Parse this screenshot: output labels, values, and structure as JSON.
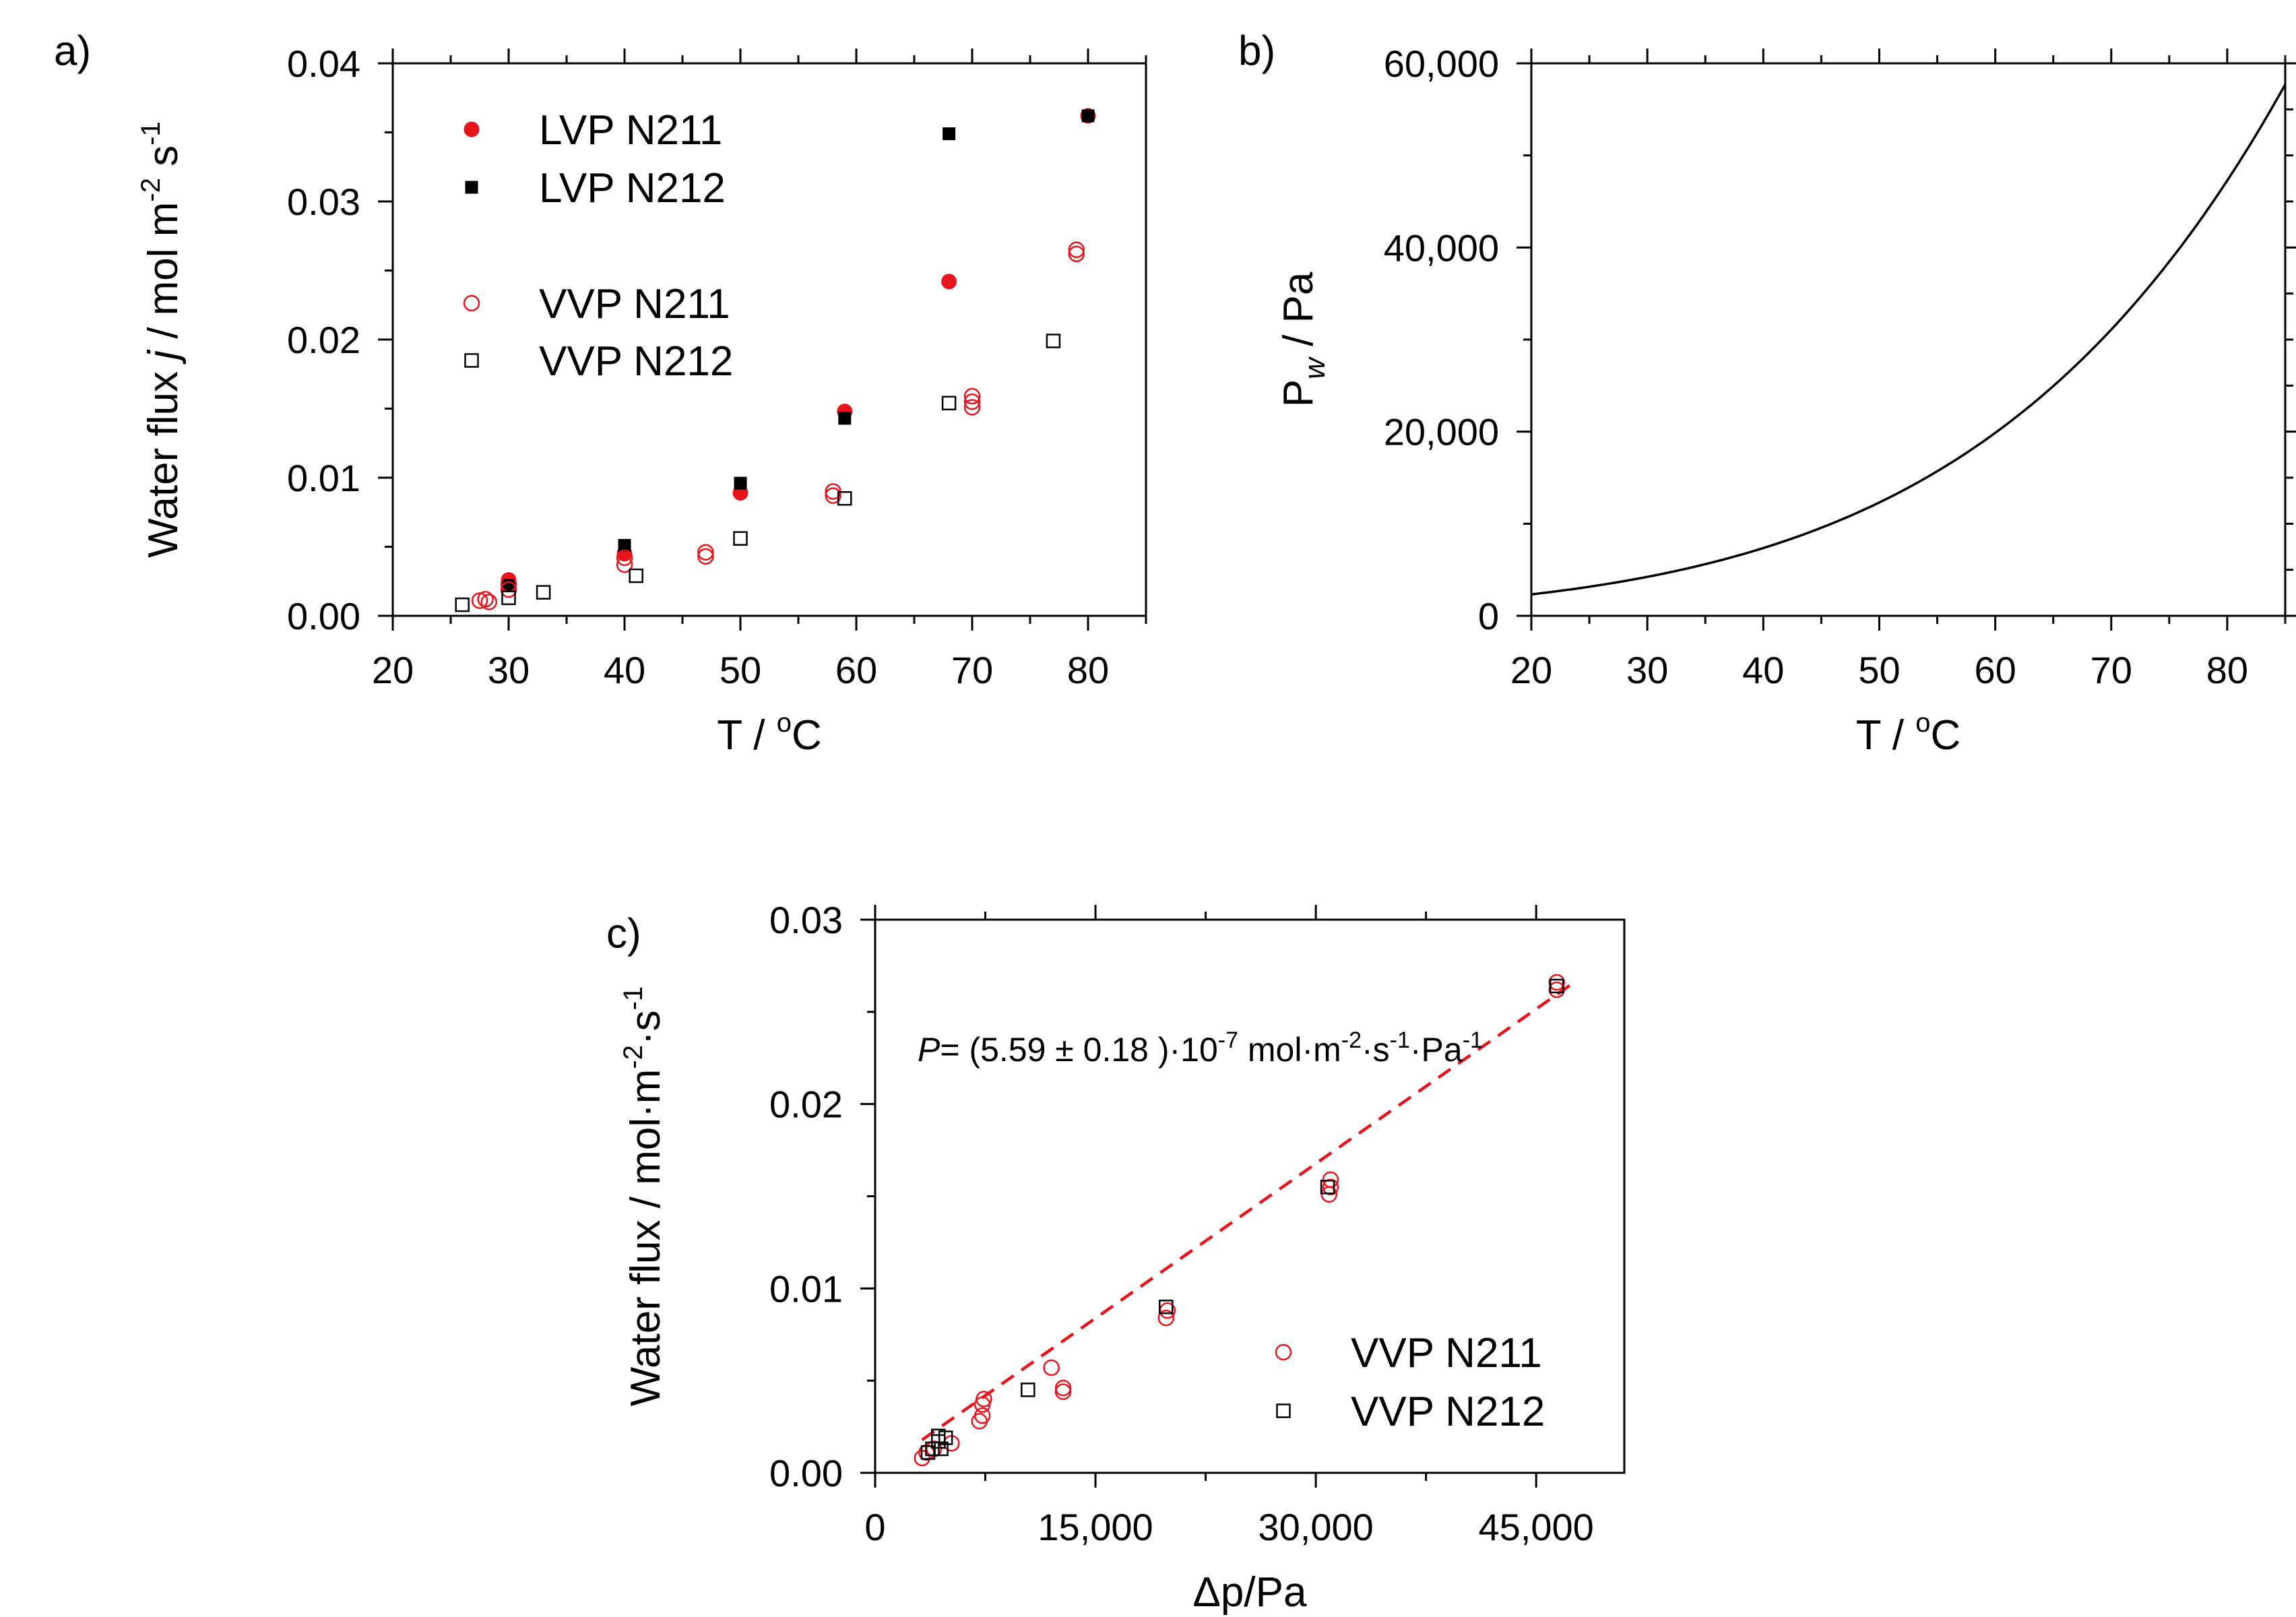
{
  "chart_data": [
    {
      "panel": "a)",
      "type": "scatter",
      "xlabel": {
        "main": "T / ",
        "sup": "o",
        "unit": "C"
      },
      "ylabel": {
        "parts": [
          "Water flux ",
          "j",
          " / mol m",
          "-2",
          " s",
          "-1"
        ]
      },
      "xlim": [
        20,
        85
      ],
      "ylim": [
        0,
        0.04
      ],
      "xticks": [
        "20",
        "30",
        "40",
        "50",
        "60",
        "70",
        "80"
      ],
      "yticks": [
        "0.00",
        "0.01",
        "0.02",
        "0.03",
        "0.04"
      ],
      "legend_position": "top-left",
      "series": [
        {
          "name": "LVP N211",
          "marker": "filled-circle",
          "color": "#e8141c",
          "points": [
            [
              30,
              0.0026
            ],
            [
              40,
              0.0045
            ],
            [
              50,
              0.0089
            ],
            [
              59,
              0.0148
            ],
            [
              68,
              0.0242
            ],
            [
              80,
              0.0362
            ]
          ]
        },
        {
          "name": "LVP N212",
          "marker": "filled-square",
          "color": "#000000",
          "points": [
            [
              30,
              0.0022
            ],
            [
              40,
              0.0051
            ],
            [
              50,
              0.0096
            ],
            [
              59,
              0.0143
            ],
            [
              68,
              0.0349
            ],
            [
              80,
              0.0362
            ]
          ]
        },
        {
          "name": "VVP N211",
          "marker": "open-circle",
          "color": "#e8141c",
          "points": [
            [
              27.5,
              0.0011
            ],
            [
              28,
              0.0012
            ],
            [
              28.3,
              0.001
            ],
            [
              30,
              0.0019
            ],
            [
              30,
              0.0023
            ],
            [
              40,
              0.0037
            ],
            [
              40,
              0.0042
            ],
            [
              47,
              0.0043
            ],
            [
              47,
              0.0046
            ],
            [
              58,
              0.0087
            ],
            [
              58,
              0.009
            ],
            [
              70,
              0.0151
            ],
            [
              70,
              0.0155
            ],
            [
              70,
              0.0159
            ],
            [
              79,
              0.0262
            ],
            [
              79,
              0.0265
            ]
          ]
        },
        {
          "name": "VVP N212",
          "marker": "open-square",
          "color": "#000000",
          "points": [
            [
              26,
              0.0008
            ],
            [
              30,
              0.0013
            ],
            [
              33,
              0.0017
            ],
            [
              41,
              0.0029
            ],
            [
              50,
              0.0056
            ],
            [
              59,
              0.0085
            ],
            [
              68,
              0.0154
            ],
            [
              77,
              0.0199
            ]
          ]
        }
      ]
    },
    {
      "panel": "b)",
      "type": "line",
      "xlabel": {
        "main": "T / ",
        "sup": "o",
        "unit": "C"
      },
      "ylabel": {
        "main": "P",
        "sub": "w",
        "unit": " / Pa"
      },
      "xlim": [
        20,
        85
      ],
      "ylim": [
        0,
        60000
      ],
      "xticks": [
        "20",
        "30",
        "40",
        "50",
        "60",
        "70",
        "80"
      ],
      "yticks": [
        "0",
        "20,000",
        "40,000",
        "60,000"
      ],
      "series": [
        {
          "name": "P_w",
          "color": "#000000",
          "formula": "Antoine water vapour pressure",
          "x": [
            20,
            25,
            30,
            35,
            40,
            45,
            50,
            55,
            60,
            65,
            70,
            75,
            80,
            85
          ],
          "y": [
            2339,
            3169,
            4246,
            5627,
            7384,
            9593,
            12352,
            15763,
            19946,
            25036,
            31185,
            38562,
            47379,
            57835
          ]
        }
      ]
    },
    {
      "panel": "c)",
      "type": "scatter",
      "xlabel": {
        "main": "Δp/Pa"
      },
      "ylabel": {
        "parts": [
          "Water flux / mol·m",
          "-2",
          "·s",
          "-1"
        ]
      },
      "xlim": [
        0,
        51000
      ],
      "ylim": [
        0,
        0.03
      ],
      "xticks": [
        "0",
        "15,000",
        "30,000",
        "45,000"
      ],
      "xtick_values": [
        0,
        15000,
        30000,
        45000
      ],
      "yticks": [
        "0.00",
        "0.01",
        "0.02",
        "0.03"
      ],
      "legend_position": "bottom-right",
      "annotation": {
        "italic": "P",
        "text": "= (5.59 ± 0.18 )·10",
        "sup1": "-7",
        "rest1": " mol·m",
        "sup2": "-2",
        "rest2": "·s",
        "sup3": "-1",
        "rest3": "·Pa",
        "sup4": "-1"
      },
      "fit": {
        "slope": 5.59e-07,
        "x_range": [
          3200,
          47300
        ],
        "color": "#e8141c",
        "style": "dashed"
      },
      "series": [
        {
          "name": "VVP N211",
          "marker": "open-circle",
          "color": "#e8141c",
          "points": [
            [
              3200,
              0.0008
            ],
            [
              3500,
              0.0011
            ],
            [
              4000,
              0.0013
            ],
            [
              5200,
              0.0016
            ],
            [
              7100,
              0.0028
            ],
            [
              7300,
              0.0031
            ],
            [
              7300,
              0.0037
            ],
            [
              7400,
              0.004
            ],
            [
              12000,
              0.0057
            ],
            [
              12800,
              0.0044
            ],
            [
              12800,
              0.0046
            ],
            [
              19800,
              0.0084
            ],
            [
              19900,
              0.0088
            ],
            [
              30900,
              0.0151
            ],
            [
              31000,
              0.0155
            ],
            [
              31000,
              0.0159
            ],
            [
              46400,
              0.0262
            ],
            [
              46400,
              0.0266
            ]
          ]
        },
        {
          "name": "VVP N212",
          "marker": "open-square",
          "color": "#000000",
          "points": [
            [
              3600,
              0.0011
            ],
            [
              3900,
              0.0013
            ],
            [
              4300,
              0.0017
            ],
            [
              4500,
              0.0013
            ],
            [
              4300,
              0.002
            ],
            [
              4800,
              0.0019
            ],
            [
              10400,
              0.0045
            ],
            [
              19800,
              0.009
            ],
            [
              30800,
              0.0155
            ],
            [
              46400,
              0.0264
            ]
          ]
        }
      ]
    }
  ]
}
